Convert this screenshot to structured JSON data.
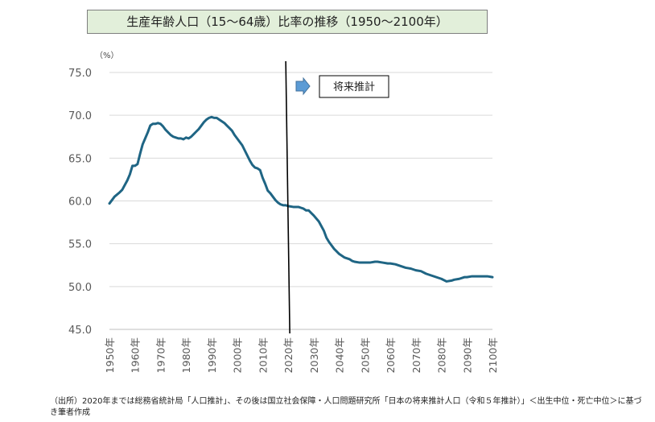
{
  "title": "生産年齢人口（15～64歳）比率の推移（1950～2100年）",
  "unit_label": "（%）",
  "projection_label": "将来推計",
  "source_note": "（出所）2020年までは総務省統計局「人口推計」、その後は国立社会保障・人口問題研究所「日本の将来推計人口（令和５年推計）」＜出生中位・死亡中位＞に基づき筆者作成",
  "colors": {
    "line": "#1f6584",
    "grid": "#d9d9d9",
    "title_bg": "#e2efda",
    "arrow": "#5b9bd5"
  },
  "chart_data": {
    "type": "line",
    "ylim": [
      45,
      75
    ],
    "yticks": [
      "45.0",
      "50.0",
      "55.0",
      "60.0",
      "65.0",
      "70.0",
      "75.0"
    ],
    "ytick_values": [
      45,
      50,
      55,
      60,
      65,
      70,
      75
    ],
    "xlim": [
      1950,
      2100
    ],
    "xticks": [
      "1950年",
      "1960年",
      "1970年",
      "1980年",
      "1990年",
      "2000年",
      "2010年",
      "2020年",
      "2030年",
      "2040年",
      "2050年",
      "2060年",
      "2070年",
      "2080年",
      "2090年",
      "2100年"
    ],
    "xtick_values": [
      1950,
      1960,
      1970,
      1980,
      1990,
      2000,
      2010,
      2020,
      2030,
      2040,
      2050,
      2060,
      2070,
      2080,
      2090,
      2100
    ],
    "grid": "horizontal",
    "projection_start": 2020,
    "series": [
      {
        "name": "",
        "x": [
          1950,
          1952,
          1954,
          1955,
          1957,
          1958,
          1959,
          1960,
          1961,
          1962,
          1963,
          1964,
          1965,
          1966,
          1967,
          1968,
          1969,
          1970,
          1971,
          1972,
          1973,
          1974,
          1975,
          1976,
          1977,
          1978,
          1979,
          1980,
          1981,
          1982,
          1983,
          1984,
          1985,
          1986,
          1987,
          1988,
          1989,
          1990,
          1991,
          1992,
          1993,
          1994,
          1995,
          1996,
          1997,
          1998,
          1999,
          2000,
          2001,
          2002,
          2003,
          2004,
          2005,
          2006,
          2007,
          2008,
          2009,
          2010,
          2011,
          2012,
          2013,
          2014,
          2015,
          2016,
          2017,
          2018,
          2019,
          2020,
          2022,
          2024,
          2025,
          2026,
          2027,
          2028,
          2029,
          2030,
          2032,
          2034,
          2035,
          2036,
          2038,
          2040,
          2042,
          2044,
          2045,
          2046,
          2048,
          2050,
          2052,
          2054,
          2055,
          2057,
          2059,
          2060,
          2062,
          2064,
          2066,
          2068,
          2070,
          2072,
          2074,
          2076,
          2078,
          2080,
          2082,
          2084,
          2085,
          2087,
          2089,
          2090,
          2092,
          2094,
          2096,
          2098,
          2100
        ],
        "values": [
          59.7,
          60.5,
          61.0,
          61.3,
          62.4,
          63.1,
          64.1,
          64.1,
          64.3,
          65.5,
          66.6,
          67.3,
          68.0,
          68.8,
          69.0,
          69.0,
          69.1,
          69.0,
          68.7,
          68.3,
          68.0,
          67.7,
          67.5,
          67.4,
          67.3,
          67.3,
          67.2,
          67.4,
          67.3,
          67.5,
          67.8,
          68.1,
          68.4,
          68.8,
          69.2,
          69.5,
          69.7,
          69.8,
          69.7,
          69.7,
          69.5,
          69.3,
          69.1,
          68.8,
          68.5,
          68.2,
          67.7,
          67.3,
          66.9,
          66.5,
          65.9,
          65.3,
          64.7,
          64.2,
          63.9,
          63.8,
          63.6,
          62.7,
          62.0,
          61.2,
          60.9,
          60.5,
          60.1,
          59.8,
          59.6,
          59.5,
          59.5,
          59.4,
          59.3,
          59.3,
          59.2,
          59.1,
          58.9,
          58.9,
          58.6,
          58.3,
          57.6,
          56.5,
          55.7,
          55.2,
          54.4,
          53.8,
          53.4,
          53.2,
          53.0,
          52.9,
          52.8,
          52.8,
          52.8,
          52.9,
          52.9,
          52.8,
          52.7,
          52.7,
          52.6,
          52.4,
          52.2,
          52.1,
          51.9,
          51.8,
          51.5,
          51.3,
          51.1,
          50.9,
          50.6,
          50.7,
          50.8,
          50.9,
          51.1,
          51.1,
          51.2,
          51.2,
          51.2,
          51.2,
          51.1
        ]
      }
    ]
  }
}
